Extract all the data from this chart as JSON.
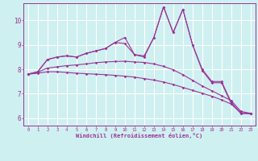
{
  "xlabel": "Windchill (Refroidissement éolien,°C)",
  "bg_color": "#cff0f0",
  "grid_color": "#ffffff",
  "line_color": "#993399",
  "xlim": [
    -0.5,
    23.5
  ],
  "ylim": [
    5.7,
    10.7
  ],
  "xticks": [
    0,
    1,
    2,
    3,
    4,
    5,
    6,
    7,
    8,
    9,
    10,
    11,
    12,
    13,
    14,
    15,
    16,
    17,
    18,
    19,
    20,
    21,
    22,
    23
  ],
  "yticks": [
    6,
    7,
    8,
    9,
    10
  ],
  "series": [
    [
      7.8,
      7.9,
      8.4,
      8.5,
      8.55,
      8.5,
      8.65,
      8.75,
      8.85,
      9.1,
      9.3,
      8.6,
      8.5,
      9.3,
      10.55,
      9.5,
      10.45,
      9.0,
      8.0,
      7.5,
      7.5,
      6.65,
      6.2,
      6.2
    ],
    [
      7.8,
      7.9,
      8.4,
      8.5,
      8.55,
      8.5,
      8.65,
      8.75,
      8.85,
      9.1,
      9.05,
      8.6,
      8.55,
      9.3,
      10.55,
      9.5,
      10.45,
      9.0,
      7.95,
      7.45,
      7.45,
      6.6,
      6.2,
      6.2
    ],
    [
      7.8,
      7.88,
      8.05,
      8.1,
      8.15,
      8.18,
      8.22,
      8.27,
      8.3,
      8.32,
      8.33,
      8.3,
      8.28,
      8.22,
      8.12,
      7.98,
      7.78,
      7.55,
      7.32,
      7.12,
      6.92,
      6.72,
      6.28,
      6.2
    ],
    [
      7.8,
      7.84,
      7.9,
      7.9,
      7.87,
      7.84,
      7.82,
      7.8,
      7.78,
      7.75,
      7.72,
      7.68,
      7.62,
      7.56,
      7.48,
      7.38,
      7.26,
      7.14,
      7.02,
      6.9,
      6.75,
      6.58,
      6.22,
      6.18
    ]
  ]
}
